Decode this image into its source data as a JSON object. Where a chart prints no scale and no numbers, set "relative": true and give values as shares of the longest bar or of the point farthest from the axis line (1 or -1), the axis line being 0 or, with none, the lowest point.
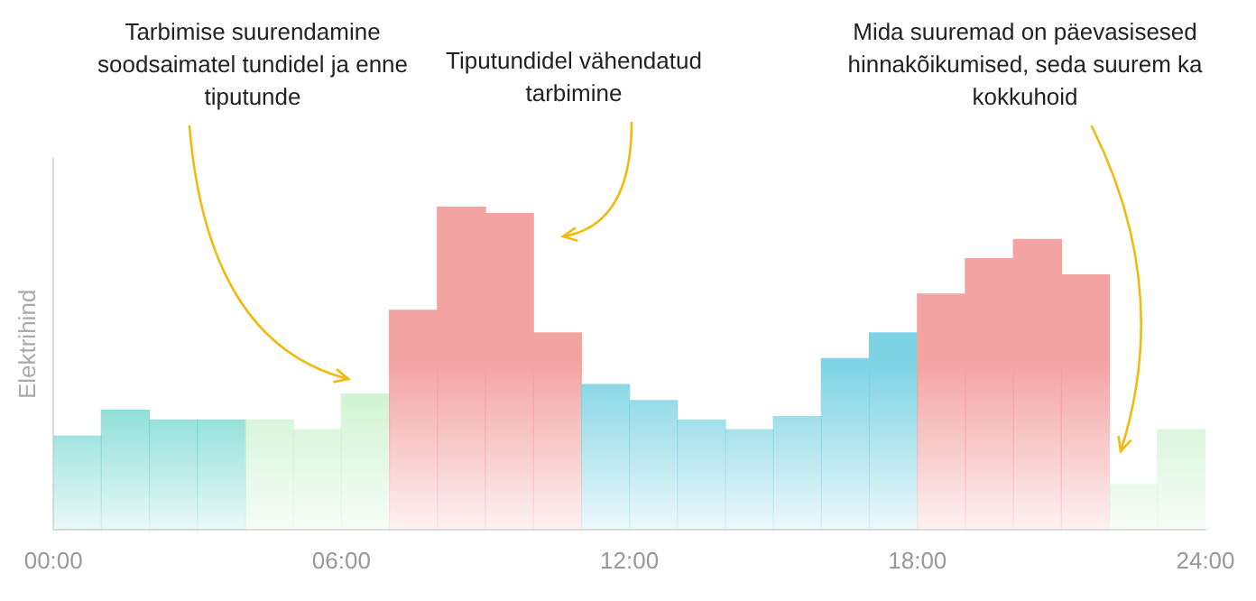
{
  "chart_data": {
    "type": "bar",
    "relative": true,
    "ylabel": "Elektrihind",
    "x": [
      0.5,
      1.5,
      2.5,
      3.5,
      4.5,
      5.5,
      6.5,
      7.5,
      8.5,
      9.5,
      10.5,
      11.5,
      12.5,
      13.5,
      14.5,
      15.5,
      16.5,
      17.5,
      18.5,
      19.5,
      20.5,
      21.5,
      22.5,
      23.5
    ],
    "values": [
      0.29,
      0.37,
      0.34,
      0.34,
      0.34,
      0.31,
      0.42,
      0.68,
      1,
      0.98,
      0.61,
      0.45,
      0.4,
      0.34,
      0.31,
      0.35,
      0.53,
      0.61,
      0.73,
      0.84,
      0.9,
      0.79,
      0.14,
      0.31
    ],
    "colors": [
      "#6dd5cc",
      "#6dd5cc",
      "#6dd5cc",
      "#6dd5cc",
      "#c8f2cc",
      "#c8f2cc",
      "#c8f2cc",
      "#f4a3a3",
      "#f4a3a3",
      "#f4a3a3",
      "#f4a3a3",
      "#7dd3e3",
      "#7dd3e3",
      "#7dd3e3",
      "#7dd3e3",
      "#7dd3e3",
      "#7dd3e3",
      "#7dd3e3",
      "#f4a3a3",
      "#f4a3a3",
      "#f4a3a3",
      "#f4a3a3",
      "#c8f2cc",
      "#c8f2cc"
    ],
    "xlim": [
      0,
      24
    ],
    "xticks": [
      {
        "value": 0,
        "label": "00:00"
      },
      {
        "value": 6,
        "label": "06:00"
      },
      {
        "value": 12,
        "label": "12:00"
      },
      {
        "value": 18,
        "label": "18:00"
      },
      {
        "value": 24,
        "label": "24:00"
      }
    ],
    "legend": false,
    "grid": false,
    "annotations": [
      "Tarbimise suurendamine soodsaimatel tundidel ja enne tiputunde",
      "Tiputundidel vähendatud tarbimine",
      "Mida suuremad on päevasisesed hinnakõikumised, seda suurem ka kokkuhoid"
    ]
  }
}
